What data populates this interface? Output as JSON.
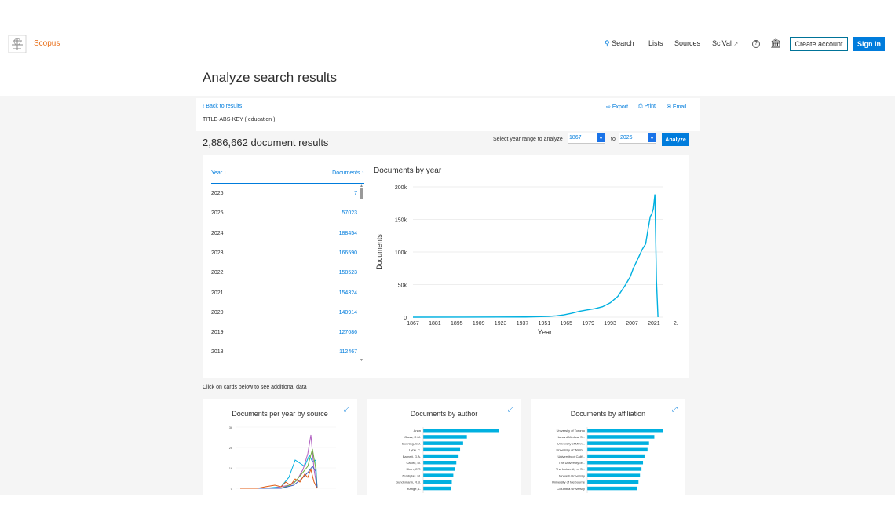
{
  "header": {
    "brand": "Scopus",
    "nav": {
      "search": "Search",
      "lists": "Lists",
      "sources": "Sources",
      "scival": "SciVal"
    },
    "create_account": "Create account",
    "sign_in": "Sign in"
  },
  "page": {
    "title": "Analyze search results",
    "back": "Back to results",
    "export": "Export",
    "print": "Print",
    "email": "Email",
    "query": "TITLE-ABS-KEY ( education )",
    "results": "2,886,662 document results",
    "year_range_label": "Select year range to analyze",
    "year_from": "1867",
    "year_to": "2026",
    "to": "to",
    "analyze": "Analyze",
    "hint": "Click on cards below to see additional data"
  },
  "table": {
    "col_year": "Year",
    "col_docs": "Documents",
    "rows": [
      {
        "year": "2026",
        "docs": "7"
      },
      {
        "year": "2025",
        "docs": "57023"
      },
      {
        "year": "2024",
        "docs": "188454"
      },
      {
        "year": "2023",
        "docs": "166590"
      },
      {
        "year": "2022",
        "docs": "158523"
      },
      {
        "year": "2021",
        "docs": "154324"
      },
      {
        "year": "2020",
        "docs": "140914"
      },
      {
        "year": "2019",
        "docs": "127086"
      },
      {
        "year": "2018",
        "docs": "112467"
      }
    ]
  },
  "chart_data": {
    "type": "line",
    "title": "Documents by year",
    "xlabel": "Year",
    "ylabel": "Documents",
    "color": "#00b0e0",
    "ylim": [
      0,
      200000
    ],
    "yticks": [
      "0",
      "50k",
      "100k",
      "150k",
      "200k"
    ],
    "xticks": [
      "1867",
      "1881",
      "1895",
      "1909",
      "1923",
      "1937",
      "1951",
      "1965",
      "1979",
      "1993",
      "2007",
      "2021",
      "2."
    ],
    "x": [
      1867,
      1900,
      1940,
      1950,
      1955,
      1960,
      1965,
      1970,
      1975,
      1980,
      1985,
      1990,
      1995,
      2000,
      2005,
      2008,
      2010,
      2012,
      2014,
      2016,
      2018,
      2019,
      2020,
      2021,
      2022,
      2023,
      2024,
      2025,
      2026
    ],
    "y": [
      0,
      100,
      300,
      800,
      1200,
      2000,
      3500,
      6000,
      9000,
      11000,
      13000,
      16000,
      22000,
      32000,
      50000,
      62000,
      75000,
      85000,
      95000,
      105000,
      112467,
      127086,
      140914,
      154324,
      158523,
      166590,
      188454,
      57023,
      7
    ]
  },
  "cards": {
    "by_source": "Documents per year by source",
    "by_author": "Documents by author",
    "by_affiliation": "Documents by affiliation",
    "source_yticks": [
      "0",
      "1k",
      "2k",
      "3k"
    ],
    "authors": [
      {
        "name": "Anon",
        "value": 100
      },
      {
        "name": "Glass, R.M.",
        "value": 58
      },
      {
        "name": "Dunning, S.J.",
        "value": 53
      },
      {
        "name": "Lynn, C.",
        "value": 49
      },
      {
        "name": "Barnett, G.A.",
        "value": 47
      },
      {
        "name": "Castro, M.",
        "value": 44
      },
      {
        "name": "Shen, C.T.",
        "value": 42
      },
      {
        "name": "Zembylas, M.",
        "value": 40
      },
      {
        "name": "Gundemann, R.B.",
        "value": 38
      },
      {
        "name": "Kange, L.",
        "value": 37
      }
    ],
    "affiliations": [
      {
        "name": "University of Toronto",
        "value": 100
      },
      {
        "name": "Harvard Medical S...",
        "value": 89
      },
      {
        "name": "University of Minn...",
        "value": 82
      },
      {
        "name": "University of Wash...",
        "value": 80
      },
      {
        "name": "University of Calif...",
        "value": 76
      },
      {
        "name": "The University of...",
        "value": 74
      },
      {
        "name": "The University of S...",
        "value": 72
      },
      {
        "name": "Monash University",
        "value": 70
      },
      {
        "name": "University of Melbourne",
        "value": 68
      },
      {
        "name": "Columbia University",
        "value": 66
      }
    ],
    "author_bar_color": "#00b0e0"
  }
}
